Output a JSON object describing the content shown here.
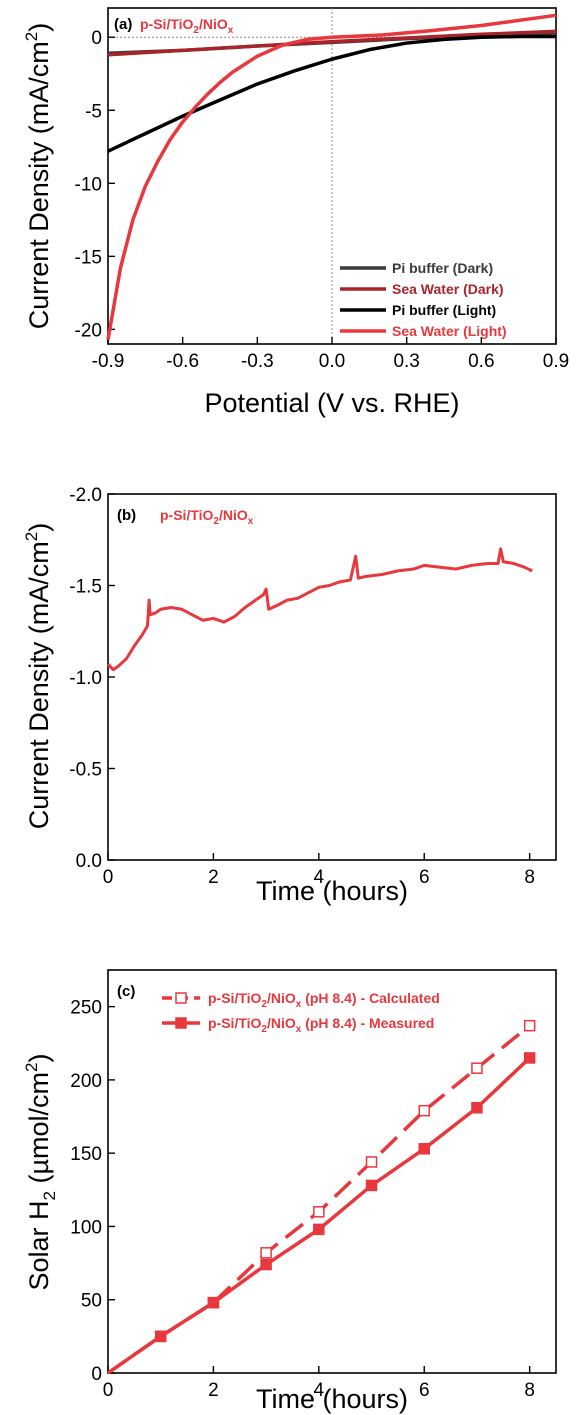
{
  "chart_data": [
    {
      "panel": "(a)",
      "type": "line",
      "annotation": "p-Si/TiO2/NiOx",
      "xlabel": "Potential (V vs. RHE)",
      "ylabel": "Current Density (mA/cm2)",
      "xlim": [
        -0.9,
        0.9
      ],
      "ylim": [
        -21,
        2
      ],
      "xticks": [
        "-0.9",
        "-0.6",
        "-0.3",
        "0.0",
        "0.3",
        "0.6",
        "0.9"
      ],
      "yticks": [
        "0",
        "-5",
        "-10",
        "-15",
        "-20"
      ],
      "reference_lines": {
        "x": 0,
        "y": 0,
        "style": "dotted"
      },
      "legend_position": "bottom-right",
      "series": [
        {
          "name": "Pi buffer (Dark)",
          "color": "#3a3a3a",
          "x": [
            -0.9,
            -0.6,
            -0.3,
            0.0,
            0.3,
            0.6,
            0.9
          ],
          "y": [
            -1.1,
            -0.9,
            -0.6,
            -0.35,
            -0.1,
            0.1,
            0.3
          ]
        },
        {
          "name": "Sea Water (Dark)",
          "color": "#a8242a",
          "x": [
            -0.9,
            -0.6,
            -0.3,
            0.0,
            0.3,
            0.6,
            0.9
          ],
          "y": [
            -1.2,
            -0.9,
            -0.6,
            -0.3,
            -0.05,
            0.2,
            0.4
          ]
        },
        {
          "name": "Pi buffer (Light)",
          "color": "#000000",
          "x": [
            -0.9,
            -0.75,
            -0.6,
            -0.45,
            -0.3,
            -0.15,
            0.0,
            0.15,
            0.3,
            0.45,
            0.6,
            0.75,
            0.9
          ],
          "y": [
            -7.8,
            -6.6,
            -5.4,
            -4.3,
            -3.2,
            -2.3,
            -1.5,
            -0.85,
            -0.4,
            -0.15,
            0.0,
            0.05,
            0.05
          ]
        },
        {
          "name": "Sea Water (Light)",
          "color": "#e8383d",
          "x": [
            -0.9,
            -0.85,
            -0.8,
            -0.75,
            -0.7,
            -0.65,
            -0.6,
            -0.55,
            -0.5,
            -0.45,
            -0.4,
            -0.3,
            -0.2,
            -0.1,
            0.0,
            0.2,
            0.4,
            0.6,
            0.9
          ],
          "y": [
            -20.7,
            -15.8,
            -12.5,
            -10.2,
            -8.5,
            -7.0,
            -5.8,
            -4.8,
            -3.9,
            -3.1,
            -2.4,
            -1.3,
            -0.55,
            -0.15,
            0.0,
            0.15,
            0.45,
            0.8,
            1.5
          ]
        }
      ]
    },
    {
      "panel": "(b)",
      "type": "line",
      "annotation": "p-Si/TiO2/NiOx",
      "xlabel": "Time (hours)",
      "ylabel": "Current Density (mA/cm2)",
      "xlim": [
        0,
        8.5
      ],
      "ylim": [
        0,
        -2.0
      ],
      "xticks": [
        "0",
        "2",
        "4",
        "6",
        "8"
      ],
      "yticks": [
        "0.0",
        "-0.5",
        "-1.0",
        "-1.5",
        "-2.0"
      ],
      "series": [
        {
          "name": "",
          "color": "#e8383d",
          "x": [
            0,
            0.1,
            0.2,
            0.35,
            0.5,
            0.65,
            0.75,
            0.78,
            0.8,
            0.9,
            1.0,
            1.2,
            1.4,
            1.6,
            1.8,
            2.0,
            2.2,
            2.4,
            2.6,
            2.8,
            2.95,
            3.0,
            3.05,
            3.2,
            3.4,
            3.6,
            3.8,
            4.0,
            4.2,
            4.4,
            4.6,
            4.7,
            4.75,
            4.9,
            5.2,
            5.5,
            5.8,
            6.0,
            6.3,
            6.6,
            6.9,
            7.2,
            7.4,
            7.45,
            7.5,
            7.7,
            7.9,
            8.05
          ],
          "y": [
            -1.07,
            -1.04,
            -1.06,
            -1.1,
            -1.17,
            -1.23,
            -1.28,
            -1.42,
            -1.34,
            -1.35,
            -1.37,
            -1.38,
            -1.37,
            -1.34,
            -1.31,
            -1.32,
            -1.3,
            -1.33,
            -1.38,
            -1.42,
            -1.45,
            -1.48,
            -1.37,
            -1.39,
            -1.42,
            -1.43,
            -1.46,
            -1.49,
            -1.5,
            -1.52,
            -1.53,
            -1.66,
            -1.54,
            -1.55,
            -1.56,
            -1.58,
            -1.59,
            -1.61,
            -1.6,
            -1.59,
            -1.61,
            -1.62,
            -1.62,
            -1.7,
            -1.63,
            -1.62,
            -1.6,
            -1.58
          ]
        }
      ]
    },
    {
      "panel": "(c)",
      "type": "line",
      "xlabel": "Time (hours)",
      "ylabel": "Solar H2 (µmol/cm2)",
      "xlim": [
        0,
        8.5
      ],
      "ylim": [
        0,
        275
      ],
      "xticks": [
        "0",
        "2",
        "4",
        "6",
        "8"
      ],
      "yticks": [
        "0",
        "50",
        "100",
        "150",
        "200",
        "250"
      ],
      "legend_position": "top",
      "series": [
        {
          "name": "p-Si/TiO2/NiOx (pH 8.4) - Calculated",
          "color": "#e8383d",
          "style": "dashed",
          "marker": "open-square",
          "x": [
            0,
            1,
            2,
            3,
            4,
            5,
            6,
            7,
            8
          ],
          "y": [
            0,
            25,
            48,
            82,
            110,
            144,
            179,
            208,
            237
          ]
        },
        {
          "name": "p-Si/TiO2/NiOx (pH 8.4) - Measured",
          "color": "#e8383d",
          "style": "solid",
          "marker": "filled-square",
          "x": [
            0,
            1,
            2,
            3,
            4,
            5,
            6,
            7,
            8
          ],
          "y": [
            0,
            25,
            48,
            74,
            98,
            128,
            153,
            181,
            215
          ]
        }
      ]
    }
  ],
  "labels": {
    "a_panel": "(a)",
    "b_panel": "(b)",
    "c_panel": "(c)",
    "sample_main": "p-Si/TiO",
    "sample_tail": "/NiO",
    "sub_2": "2",
    "sub_x": "x",
    "cd_main": "Current Density (mA/cm",
    "cd_sup": "2",
    "cd_close": ")",
    "potential": "Potential (V vs. RHE)",
    "time": "Time (hours)",
    "h2_main": "Solar H",
    "h2_sub": "2",
    "h2_mid": " (µmol/cm",
    "h2_sup": "2",
    "h2_close": ")",
    "leg_c_calc_tail": " (pH 8.4) - Calculated",
    "leg_c_meas_tail": " (pH 8.4) - Measured"
  }
}
